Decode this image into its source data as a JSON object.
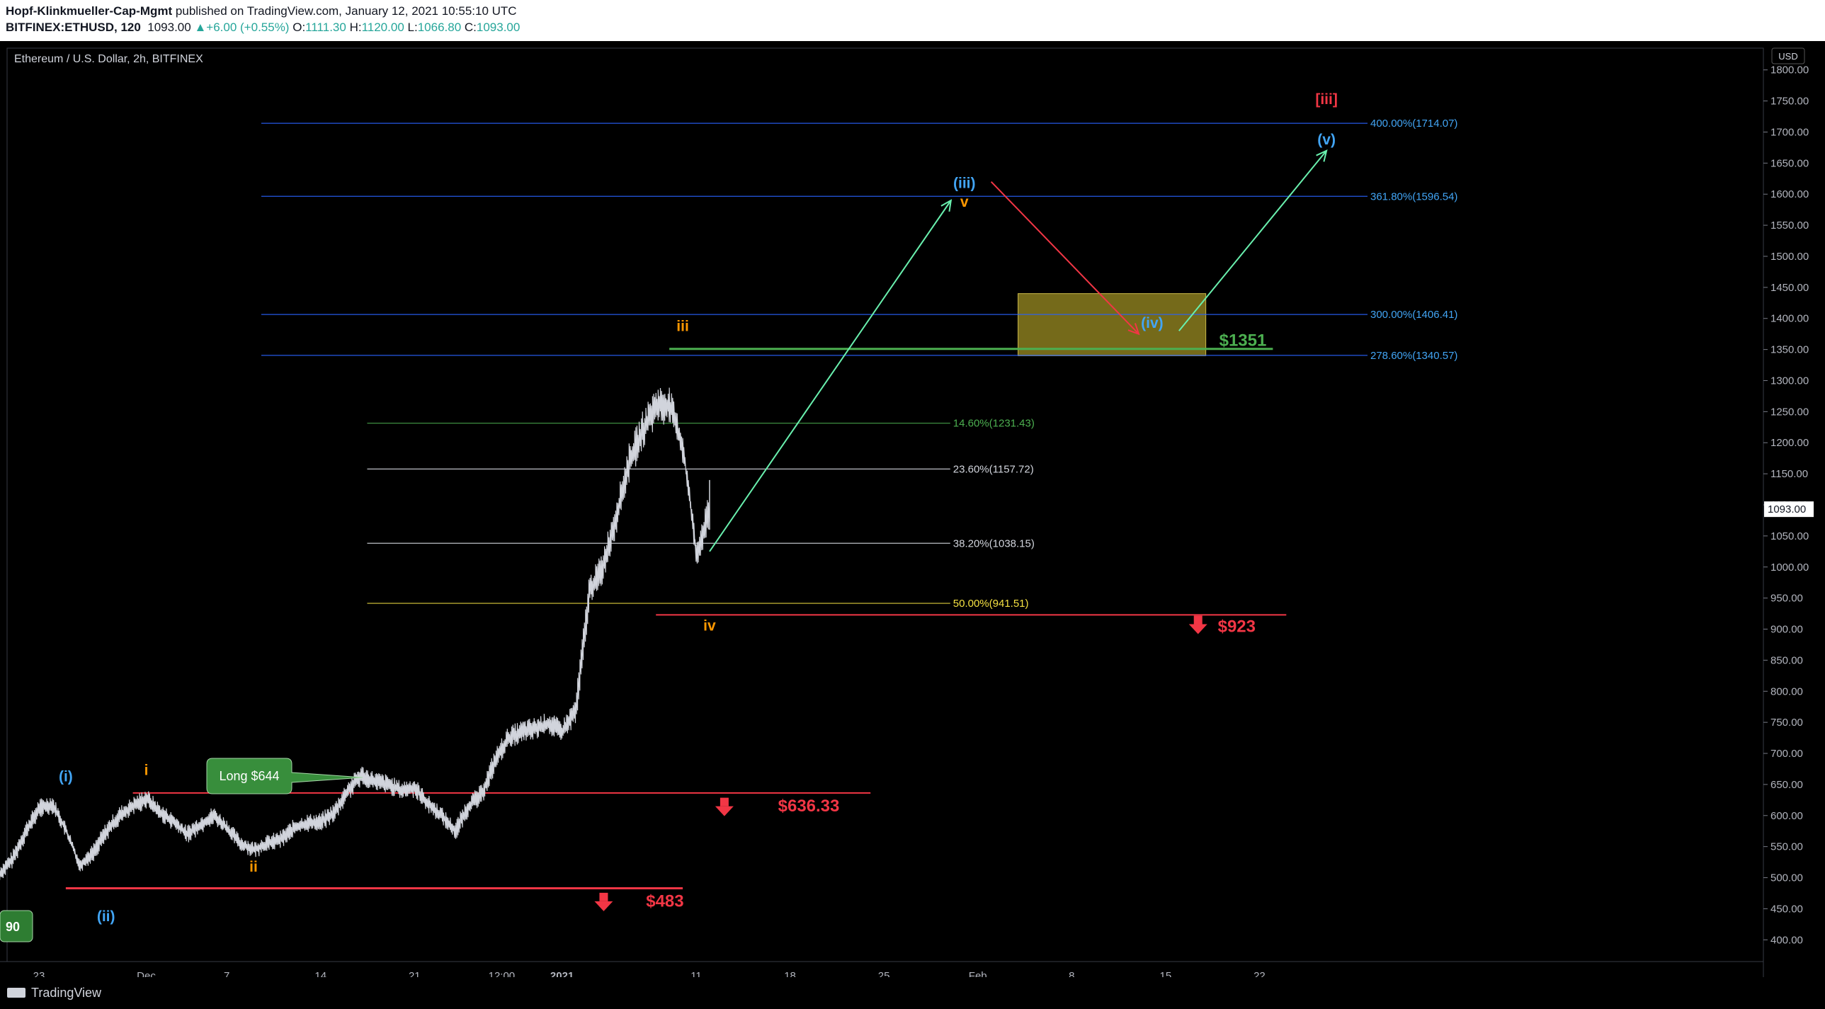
{
  "header": {
    "author": "Hopf-Klinkmueller-Cap-Mgmt",
    "published": "published on TradingView.com, January 12, 2021 10:55:10 UTC",
    "symbol": "BITFINEX:ETHUSD, 120",
    "last": "1093.00",
    "change": "+6.00 (+0.55%)",
    "o_label": "O:",
    "o": "1111.30",
    "h_label": "H:",
    "h": "1120.00",
    "l_label": "L:",
    "l": "1066.80",
    "c_label": "C:",
    "c": "1093.00"
  },
  "footer": {
    "brand": "TradingView"
  },
  "chart_data": {
    "type": "line",
    "title": "Ethereum / U.S. Dollar, 2h, BITFINEX",
    "currency_button": "USD",
    "last_price_label": "1093.00",
    "ylim": [
      365,
      1835
    ],
    "y_ticks": [
      "400.00",
      "450.00",
      "500.00",
      "550.00",
      "600.00",
      "650.00",
      "700.00",
      "750.00",
      "800.00",
      "850.00",
      "900.00",
      "950.00",
      "1000.00",
      "1050.00",
      "1100.00",
      "1150.00",
      "1200.00",
      "1250.00",
      "1300.00",
      "1350.00",
      "1400.00",
      "1450.00",
      "1500.00",
      "1550.00",
      "1600.00",
      "1650.00",
      "1700.00",
      "1750.00",
      "1800.00"
    ],
    "x_ticks": [
      {
        "label": "23",
        "date": "2020-11-23"
      },
      {
        "label": "Dec",
        "date": "2020-12-01"
      },
      {
        "label": "7",
        "date": "2020-12-07"
      },
      {
        "label": "14",
        "date": "2020-12-14"
      },
      {
        "label": "21",
        "date": "2020-12-21"
      },
      {
        "label": "12:00",
        "date": "2020-12-27T12:00"
      },
      {
        "label": "2021",
        "date": "2021-01-01"
      },
      {
        "label": "11",
        "date": "2021-01-11"
      },
      {
        "label": "18",
        "date": "2021-01-18"
      },
      {
        "label": "25",
        "date": "2021-01-25"
      },
      {
        "label": "Feb",
        "date": "2021-02-01"
      },
      {
        "label": "8",
        "date": "2021-02-08"
      },
      {
        "label": "15",
        "date": "2021-02-15"
      },
      {
        "label": "22",
        "date": "2021-02-22"
      }
    ],
    "price_series": {
      "x": [
        "2020-11-20",
        "2020-11-21",
        "2020-11-22",
        "2020-11-23",
        "2020-11-24",
        "2020-11-25",
        "2020-11-26",
        "2020-11-27",
        "2020-11-28",
        "2020-11-29",
        "2020-11-30",
        "2020-12-01",
        "2020-12-02",
        "2020-12-03",
        "2020-12-04",
        "2020-12-05",
        "2020-12-06",
        "2020-12-07",
        "2020-12-08",
        "2020-12-09",
        "2020-12-10",
        "2020-12-11",
        "2020-12-12",
        "2020-12-13",
        "2020-12-14",
        "2020-12-15",
        "2020-12-16",
        "2020-12-17",
        "2020-12-18",
        "2020-12-19",
        "2020-12-20",
        "2020-12-21",
        "2020-12-22",
        "2020-12-23",
        "2020-12-24",
        "2020-12-25",
        "2020-12-26",
        "2020-12-27",
        "2020-12-28",
        "2020-12-29",
        "2020-12-30",
        "2020-12-31",
        "2021-01-01",
        "2021-01-02",
        "2021-01-03",
        "2021-01-04",
        "2021-01-05",
        "2021-01-06",
        "2021-01-07",
        "2021-01-08",
        "2021-01-09",
        "2021-01-10",
        "2021-01-11",
        "2021-01-12"
      ],
      "y": [
        505,
        530,
        575,
        612,
        618,
        575,
        520,
        540,
        575,
        600,
        615,
        628,
        605,
        590,
        570,
        585,
        600,
        580,
        555,
        545,
        555,
        562,
        580,
        588,
        590,
        605,
        640,
        665,
        655,
        650,
        640,
        645,
        618,
        600,
        575,
        615,
        635,
        690,
        725,
        735,
        740,
        748,
        735,
        770,
        960,
        1000,
        1080,
        1170,
        1220,
        1260,
        1260,
        1190,
        1020,
        1093
      ]
    },
    "fib_extensions": [
      {
        "label": "400.00%(1714.07)",
        "value": 1714.07,
        "color": "#2962ff"
      },
      {
        "label": "361.80%(1596.54)",
        "value": 1596.54,
        "color": "#2962ff"
      },
      {
        "label": "300.00%(1406.41)",
        "value": 1406.41,
        "color": "#2962ff"
      },
      {
        "label": "278.60%(1340.57)",
        "value": 1340.57,
        "color": "#2962ff"
      }
    ],
    "fib_retracements": [
      {
        "label": "14.60%(1231.43)",
        "value": 1231.43,
        "color": "#4caf50"
      },
      {
        "label": "23.60%(1157.72)",
        "value": 1157.72,
        "color": "#d1d4dc"
      },
      {
        "label": "38.20%(1038.15)",
        "value": 1038.15,
        "color": "#d1d4dc"
      },
      {
        "label": "50.00%(941.51)",
        "value": 941.51,
        "color": "#f5e142"
      }
    ],
    "levels": [
      {
        "label": "$1351",
        "value": 1351,
        "color": "#4caf50"
      },
      {
        "label": "$923",
        "value": 923,
        "color": "#f23645"
      },
      {
        "label": "$636.33",
        "value": 636.33,
        "color": "#f23645"
      },
      {
        "label": "$483",
        "value": 483,
        "color": "#f23645"
      }
    ],
    "target_zone": {
      "from": "2021-02-04",
      "to": "2021-02-18",
      "low": 1340,
      "high": 1440,
      "color": "#8a7d1e"
    },
    "wave_labels": [
      {
        "text": "(i)",
        "date": "2020-11-25",
        "value": 655,
        "color": "#42a5f5"
      },
      {
        "text": "(ii)",
        "date": "2020-11-28",
        "value": 430,
        "color": "#42a5f5"
      },
      {
        "text": "i",
        "date": "2020-12-01",
        "value": 665,
        "color": "#ff9800"
      },
      {
        "text": "ii",
        "date": "2020-12-09",
        "value": 510,
        "color": "#ff9800"
      },
      {
        "text": "iii",
        "date": "2021-01-10",
        "value": 1380,
        "color": "#ff9800"
      },
      {
        "text": "iv",
        "date": "2021-01-12",
        "value": 898,
        "color": "#ff9800"
      },
      {
        "text": "v",
        "date": "2021-01-31",
        "value": 1580,
        "color": "#ff9800"
      },
      {
        "text": "(iii)",
        "date": "2021-01-31",
        "value": 1610,
        "color": "#42a5f5"
      },
      {
        "text": "(iv)",
        "date": "2021-02-14",
        "value": 1385,
        "color": "#42a5f5"
      },
      {
        "text": "(v)",
        "date": "2021-02-27",
        "value": 1680,
        "color": "#42a5f5"
      },
      {
        "text": "[iii]",
        "date": "2021-02-27",
        "value": 1745,
        "color": "#f23645"
      }
    ],
    "callout": {
      "text": "Long $644",
      "color": "#388e3c"
    },
    "corner_badge": "90"
  }
}
